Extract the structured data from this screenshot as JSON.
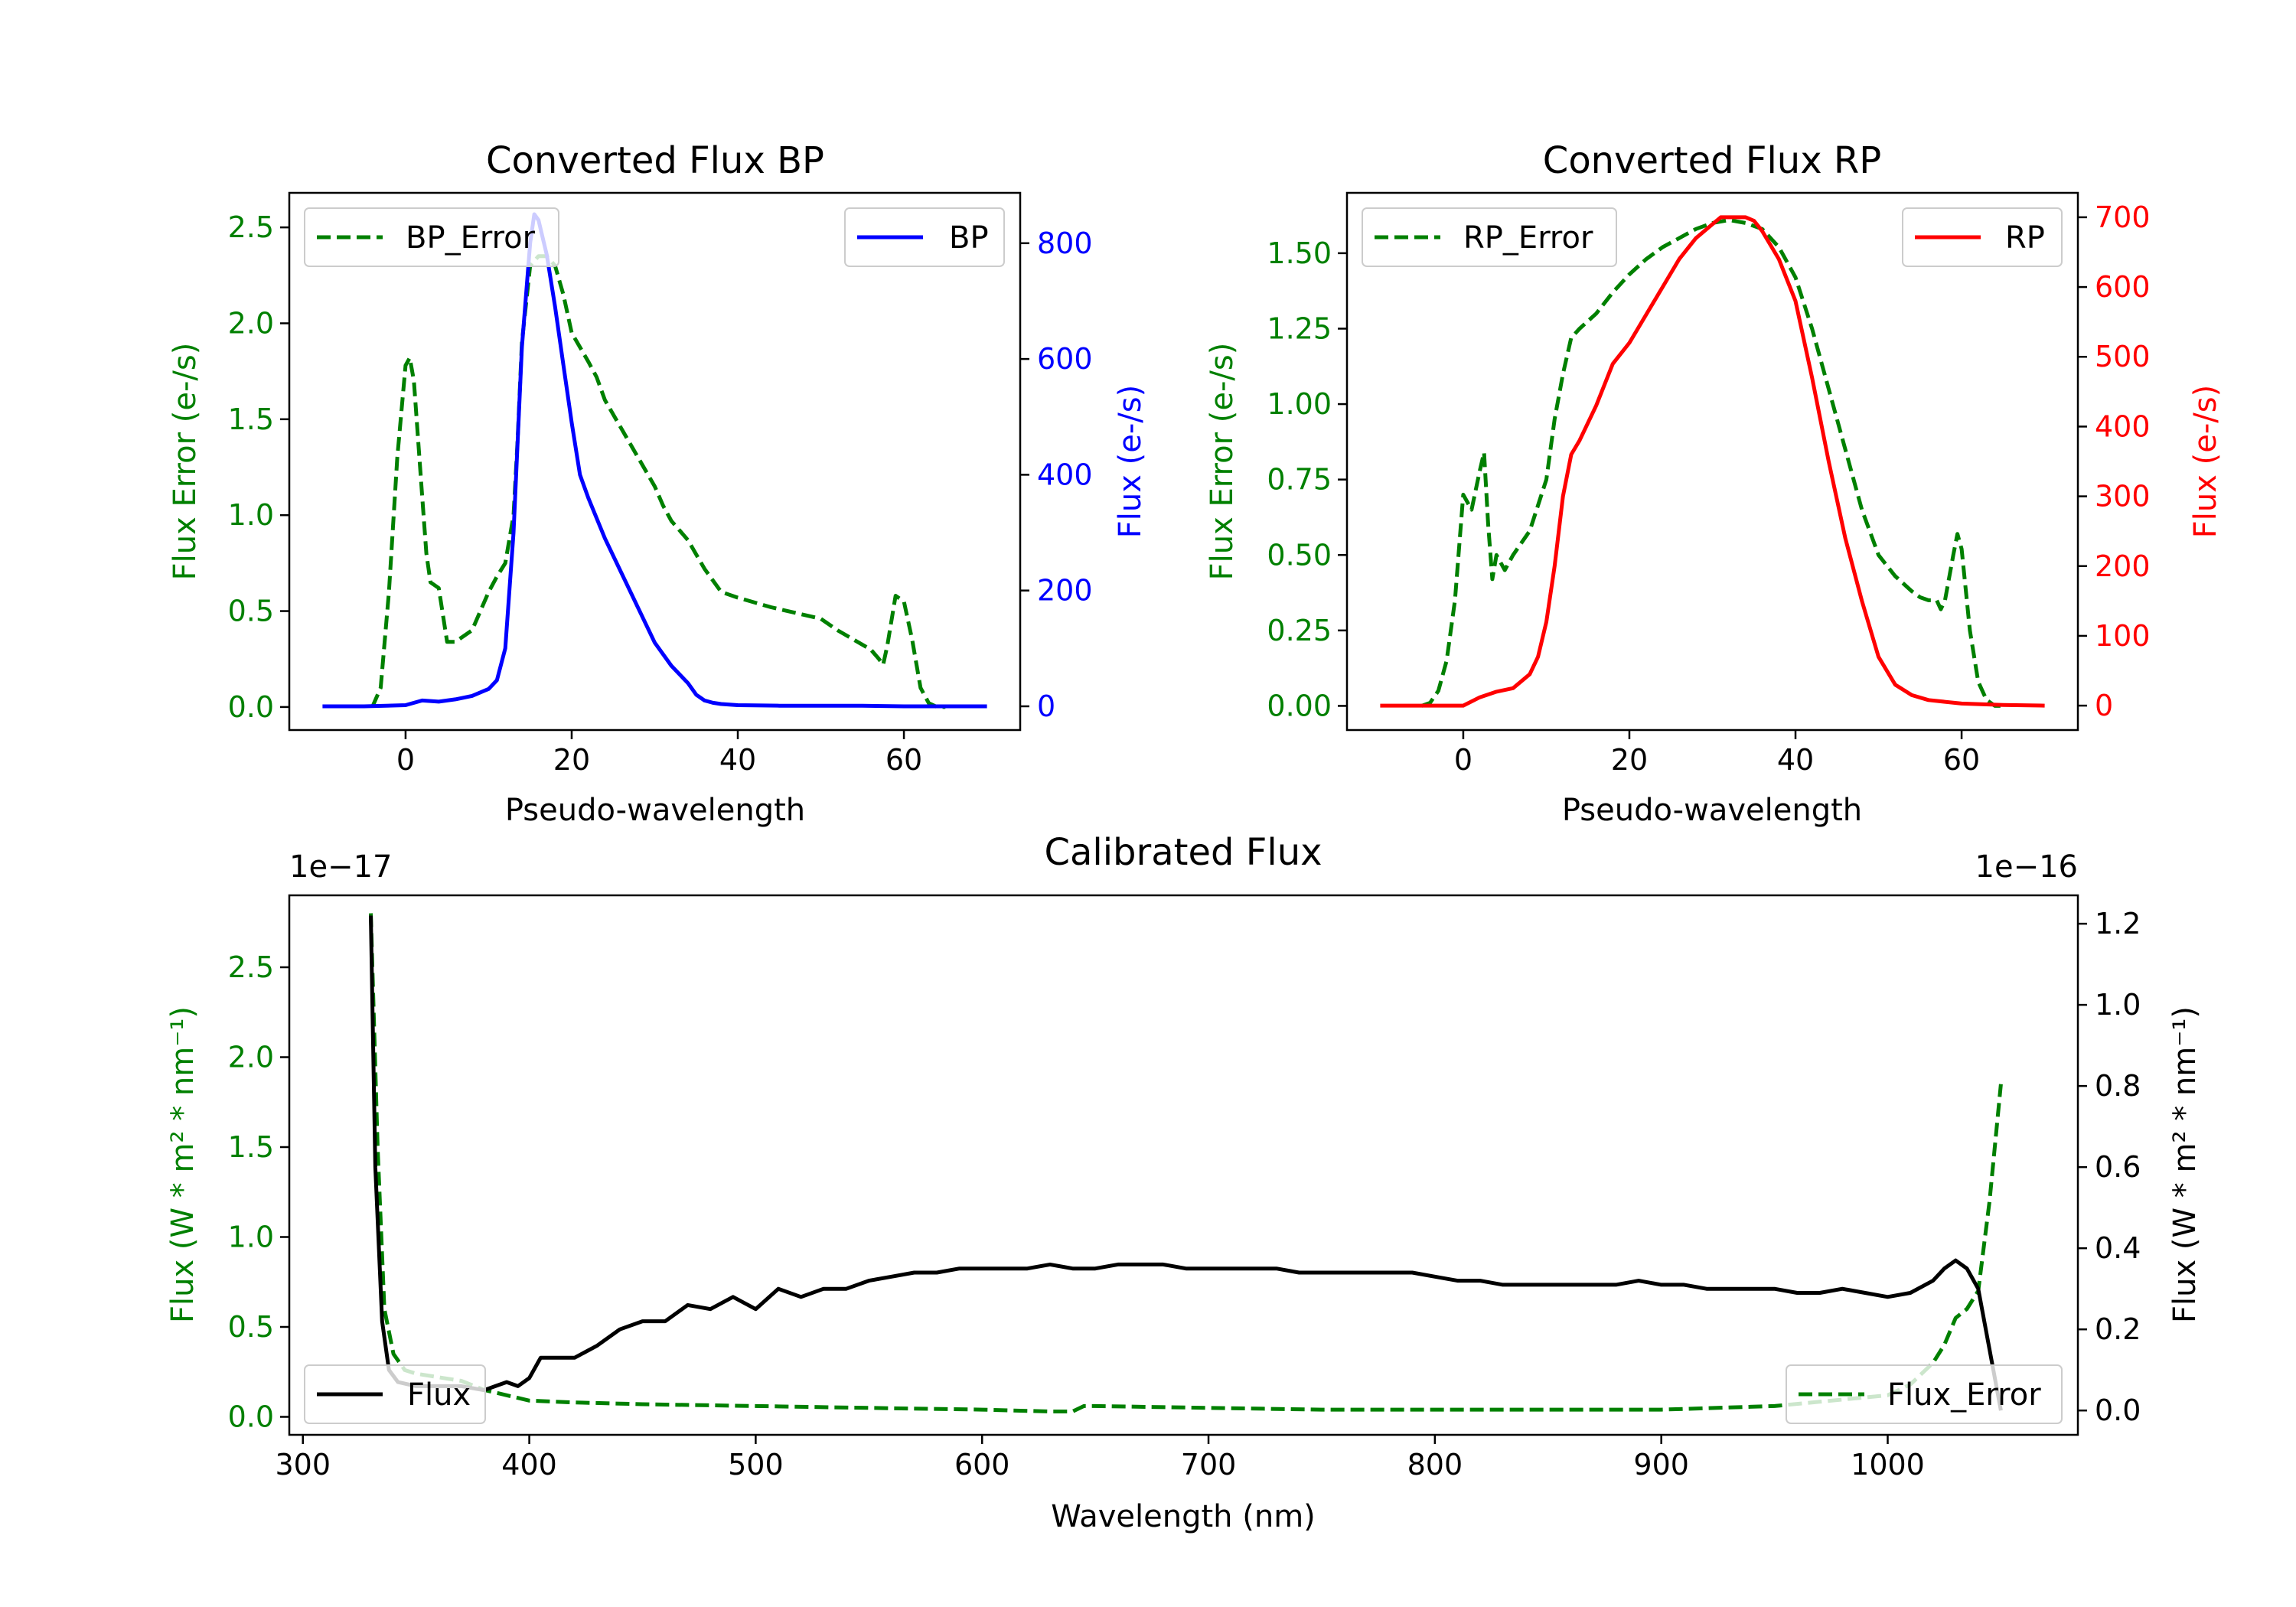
{
  "colors": {
    "green": "#008000",
    "blue": "#0000ff",
    "red": "#ff0000",
    "black": "#000000"
  },
  "chart_data": [
    {
      "id": "bp",
      "type": "line",
      "title": "Converted Flux BP",
      "xlabel": "Pseudo-wavelength",
      "xlim": [
        -14,
        74
      ],
      "xticks": [
        0,
        20,
        40,
        60
      ],
      "left_axis": {
        "label": "Flux Error (e-/s)",
        "color": "#008000",
        "ylim": [
          -0.12,
          2.68
        ],
        "ticks": [
          "0.0",
          "0.5",
          "1.0",
          "1.5",
          "2.0",
          "2.5"
        ],
        "tick_values": [
          0.0,
          0.5,
          1.0,
          1.5,
          2.0,
          2.5
        ]
      },
      "right_axis": {
        "label": "Flux (e-/s)",
        "color": "#0000ff",
        "ylim": [
          -41,
          887
        ],
        "ticks": [
          "0",
          "200",
          "400",
          "600",
          "800"
        ],
        "tick_values": [
          0,
          200,
          400,
          600,
          800
        ]
      },
      "series": [
        {
          "name": "BP_Error",
          "axis": "left",
          "style": "dashed",
          "color": "#008000",
          "x": [
            -4,
            -3,
            -2,
            -1,
            0,
            0.5,
            1,
            2,
            2.5,
            3,
            4,
            5,
            6,
            8,
            10,
            11,
            12,
            13,
            13.5,
            14,
            15,
            16,
            17,
            18,
            19,
            20,
            22,
            23,
            24,
            26,
            28,
            30,
            31,
            32,
            33,
            34,
            36,
            38,
            40,
            44,
            48,
            50,
            52,
            54,
            56,
            57,
            57.5,
            58,
            59,
            60,
            61,
            62,
            63,
            64,
            65
          ],
          "y": [
            0.0,
            0.1,
            0.6,
            1.3,
            1.78,
            1.82,
            1.7,
            1.1,
            0.8,
            0.65,
            0.62,
            0.34,
            0.34,
            0.4,
            0.6,
            0.68,
            0.75,
            1.0,
            1.4,
            1.9,
            2.3,
            2.35,
            2.35,
            2.3,
            2.15,
            1.95,
            1.8,
            1.72,
            1.6,
            1.45,
            1.3,
            1.15,
            1.05,
            0.97,
            0.92,
            0.87,
            0.72,
            0.6,
            0.57,
            0.52,
            0.48,
            0.46,
            0.4,
            0.35,
            0.3,
            0.25,
            0.22,
            0.32,
            0.58,
            0.55,
            0.35,
            0.1,
            0.02,
            0.0,
            0.0
          ]
        },
        {
          "name": "BP",
          "axis": "right",
          "style": "solid",
          "color": "#0000ff",
          "x": [
            -10,
            -5,
            0,
            2,
            4,
            6,
            8,
            10,
            11,
            12,
            13,
            14,
            15,
            15.5,
            16,
            17,
            18,
            19,
            20,
            21,
            22,
            24,
            26,
            28,
            30,
            32,
            34,
            35,
            36,
            37,
            38,
            40,
            45,
            50,
            55,
            60,
            65,
            70
          ],
          "y": [
            0,
            0,
            2,
            10,
            8,
            12,
            18,
            30,
            45,
            100,
            300,
            620,
            800,
            850,
            840,
            780,
            690,
            590,
            490,
            400,
            360,
            290,
            230,
            170,
            110,
            70,
            40,
            20,
            10,
            6,
            4,
            2,
            1,
            1,
            1,
            0,
            0,
            0
          ]
        }
      ],
      "legends": [
        {
          "label": "BP_Error",
          "position": "upper left",
          "style": "dashed",
          "color": "#008000"
        },
        {
          "label": "BP",
          "position": "upper right",
          "style": "solid",
          "color": "#0000ff"
        }
      ]
    },
    {
      "id": "rp",
      "type": "line",
      "title": "Converted Flux RP",
      "xlabel": "Pseudo-wavelength",
      "xlim": [
        -14,
        74
      ],
      "xticks": [
        0,
        20,
        40,
        60
      ],
      "left_axis": {
        "label": "Flux Error (e-/s)",
        "color": "#008000",
        "ylim": [
          -0.08,
          1.7
        ],
        "ticks": [
          "0.00",
          "0.25",
          "0.50",
          "0.75",
          "1.00",
          "1.25",
          "1.50"
        ],
        "tick_values": [
          0.0,
          0.25,
          0.5,
          0.75,
          1.0,
          1.25,
          1.5
        ]
      },
      "right_axis": {
        "label": "Flux (e-/s)",
        "color": "#ff0000",
        "ylim": [
          -35,
          735
        ],
        "ticks": [
          "0",
          "100",
          "200",
          "300",
          "400",
          "500",
          "600",
          "700"
        ],
        "tick_values": [
          0,
          100,
          200,
          300,
          400,
          500,
          600,
          700
        ]
      },
      "series": [
        {
          "name": "RP_Error",
          "axis": "left",
          "style": "dashed",
          "color": "#008000",
          "x": [
            -5,
            -4,
            -3,
            -2,
            -1,
            0,
            1,
            2,
            2.5,
            3,
            3.5,
            4,
            5,
            6,
            8,
            10,
            11,
            12,
            13,
            14,
            16,
            18,
            20,
            22,
            24,
            26,
            28,
            30,
            32,
            34,
            36,
            38,
            40,
            42,
            44,
            46,
            48,
            50,
            52,
            54,
            55,
            56,
            57,
            57.5,
            58,
            59,
            59.5,
            60,
            61,
            62,
            63,
            64,
            65
          ],
          "y": [
            0.0,
            0.01,
            0.05,
            0.15,
            0.35,
            0.7,
            0.65,
            0.78,
            0.84,
            0.6,
            0.42,
            0.5,
            0.45,
            0.5,
            0.58,
            0.75,
            0.95,
            1.1,
            1.22,
            1.25,
            1.3,
            1.37,
            1.43,
            1.48,
            1.52,
            1.55,
            1.58,
            1.6,
            1.61,
            1.6,
            1.58,
            1.52,
            1.42,
            1.25,
            1.05,
            0.85,
            0.65,
            0.5,
            0.43,
            0.38,
            0.36,
            0.35,
            0.35,
            0.32,
            0.35,
            0.5,
            0.57,
            0.52,
            0.25,
            0.08,
            0.02,
            0.0,
            0.0
          ]
        },
        {
          "name": "RP",
          "axis": "right",
          "style": "solid",
          "color": "#ff0000",
          "x": [
            -10,
            -5,
            0,
            2,
            4,
            6,
            8,
            9,
            10,
            11,
            12,
            13,
            14,
            16,
            18,
            20,
            22,
            24,
            26,
            28,
            30,
            31,
            32,
            33,
            34,
            35,
            36,
            38,
            40,
            42,
            44,
            46,
            48,
            50,
            52,
            54,
            56,
            60,
            65,
            70
          ],
          "y": [
            0,
            0,
            0,
            12,
            20,
            25,
            45,
            70,
            120,
            200,
            300,
            360,
            380,
            430,
            490,
            520,
            560,
            600,
            640,
            670,
            690,
            700,
            700,
            700,
            700,
            695,
            680,
            640,
            580,
            470,
            350,
            240,
            150,
            70,
            30,
            15,
            8,
            3,
            1,
            0
          ]
        }
      ],
      "legends": [
        {
          "label": "RP_Error",
          "position": "upper left",
          "style": "dashed",
          "color": "#008000"
        },
        {
          "label": "RP",
          "position": "upper right",
          "style": "solid",
          "color": "#ff0000"
        }
      ]
    },
    {
      "id": "cal",
      "type": "line",
      "title": "Calibrated Flux",
      "xlabel": "Wavelength (nm)",
      "xlim": [
        294,
        1084
      ],
      "xticks": [
        300,
        400,
        500,
        600,
        700,
        800,
        900,
        1000
      ],
      "left_axis": {
        "label": "Flux (W * m² * nm⁻¹)",
        "color": "#008000",
        "offset_text": "1e−17",
        "ylim": [
          -0.1,
          2.9
        ],
        "ticks": [
          "0.0",
          "0.5",
          "1.0",
          "1.5",
          "2.0",
          "2.5"
        ],
        "tick_values": [
          0.0,
          0.5,
          1.0,
          1.5,
          2.0,
          2.5
        ]
      },
      "right_axis": {
        "label": "Flux (W * m² * nm⁻¹)",
        "color": "#000000",
        "offset_text": "1e−16",
        "ylim": [
          -0.06,
          1.27
        ],
        "ticks": [
          "0.0",
          "0.2",
          "0.4",
          "0.6",
          "0.8",
          "1.0",
          "1.2"
        ],
        "tick_values": [
          0.0,
          0.2,
          0.4,
          0.6,
          0.8,
          1.0,
          1.2
        ]
      },
      "series": [
        {
          "name": "Flux_Error",
          "axis": "left",
          "style": "dashed",
          "color": "#008000",
          "x": [
            330,
            333,
            336,
            340,
            345,
            350,
            360,
            370,
            380,
            390,
            400,
            420,
            450,
            500,
            550,
            600,
            630,
            640,
            645,
            650,
            700,
            750,
            800,
            850,
            900,
            950,
            1000,
            1010,
            1020,
            1025,
            1030,
            1035,
            1040,
            1045,
            1050
          ],
          "y": [
            2.8,
            1.5,
            0.6,
            0.35,
            0.26,
            0.24,
            0.22,
            0.2,
            0.15,
            0.12,
            0.09,
            0.08,
            0.07,
            0.06,
            0.05,
            0.04,
            0.03,
            0.03,
            0.06,
            0.06,
            0.05,
            0.04,
            0.04,
            0.04,
            0.04,
            0.06,
            0.12,
            0.18,
            0.3,
            0.4,
            0.55,
            0.6,
            0.7,
            1.2,
            1.85
          ]
        },
        {
          "name": "Flux",
          "axis": "right",
          "style": "solid",
          "color": "#000000",
          "x": [
            330,
            332,
            335,
            338,
            342,
            350,
            360,
            370,
            380,
            385,
            390,
            395,
            400,
            405,
            410,
            420,
            430,
            440,
            450,
            460,
            470,
            480,
            490,
            500,
            510,
            520,
            530,
            540,
            550,
            560,
            570,
            580,
            590,
            600,
            610,
            620,
            630,
            640,
            650,
            660,
            670,
            680,
            690,
            700,
            710,
            720,
            730,
            740,
            750,
            760,
            770,
            780,
            790,
            800,
            810,
            820,
            830,
            840,
            850,
            860,
            870,
            880,
            890,
            900,
            910,
            920,
            930,
            940,
            950,
            960,
            970,
            980,
            990,
            1000,
            1010,
            1020,
            1025,
            1030,
            1035,
            1040,
            1045,
            1050
          ],
          "y": [
            1.22,
            0.6,
            0.22,
            0.1,
            0.07,
            0.06,
            0.06,
            0.06,
            0.05,
            0.06,
            0.07,
            0.06,
            0.08,
            0.13,
            0.13,
            0.13,
            0.16,
            0.2,
            0.22,
            0.22,
            0.26,
            0.25,
            0.28,
            0.25,
            0.3,
            0.28,
            0.3,
            0.3,
            0.32,
            0.33,
            0.34,
            0.34,
            0.35,
            0.35,
            0.35,
            0.35,
            0.36,
            0.35,
            0.35,
            0.36,
            0.36,
            0.36,
            0.35,
            0.35,
            0.35,
            0.35,
            0.35,
            0.34,
            0.34,
            0.34,
            0.34,
            0.34,
            0.34,
            0.33,
            0.32,
            0.32,
            0.31,
            0.31,
            0.31,
            0.31,
            0.31,
            0.31,
            0.32,
            0.31,
            0.31,
            0.3,
            0.3,
            0.3,
            0.3,
            0.29,
            0.29,
            0.3,
            0.29,
            0.28,
            0.29,
            0.32,
            0.35,
            0.37,
            0.35,
            0.3,
            0.15,
            0.0
          ]
        }
      ],
      "legends": [
        {
          "label": "Flux",
          "position": "lower left",
          "style": "solid",
          "color": "#000000"
        },
        {
          "label": "Flux_Error",
          "position": "lower right",
          "style": "dashed",
          "color": "#008000"
        }
      ]
    }
  ]
}
